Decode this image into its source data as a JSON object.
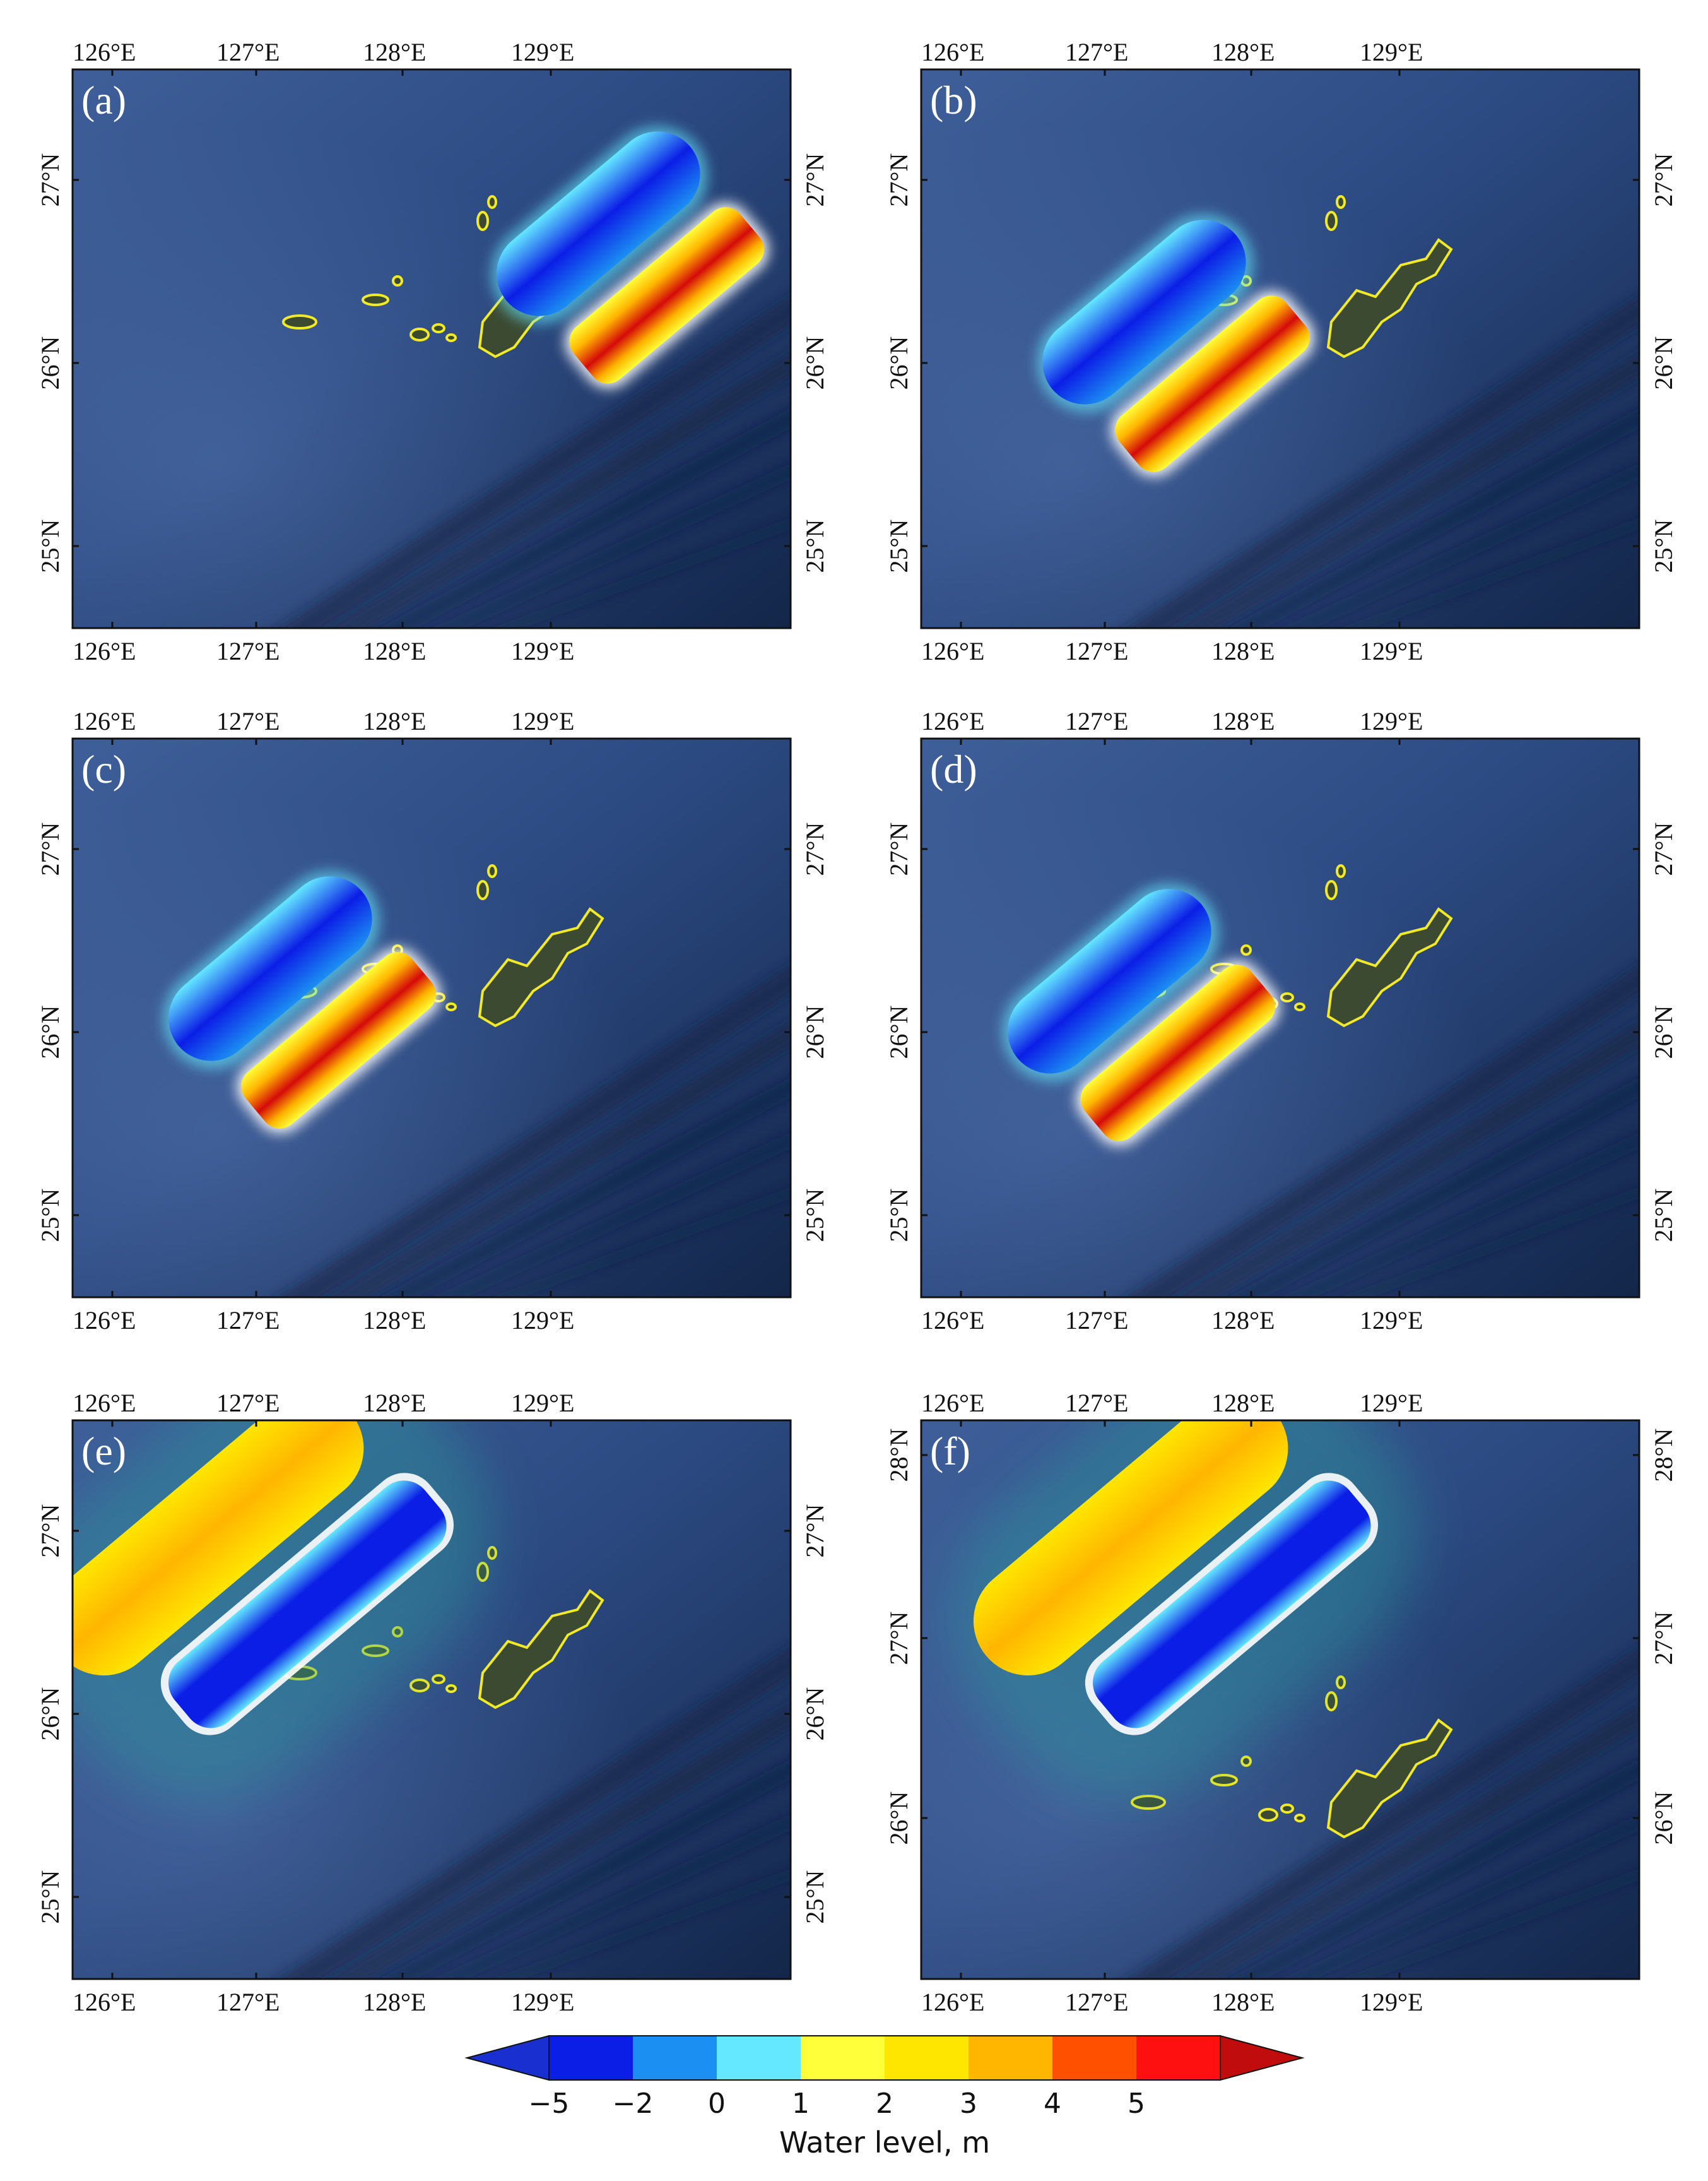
{
  "figure": {
    "panels": [
      {
        "label": "(a)",
        "lon_ticks_top": [
          "126°E",
          "127°E",
          "128°E",
          "129°E"
        ],
        "lon_ticks_bottom": [
          "126°E",
          "127°E",
          "128°E",
          "129°E"
        ],
        "lat_ticks_left": [
          "27°N",
          "26°N",
          "25°N"
        ],
        "lat_ticks_right": [
          "27°N",
          "26°N",
          "25°N"
        ]
      },
      {
        "label": "(b)",
        "lon_ticks_top": [
          "126°E",
          "127°E",
          "128°E",
          "129°E"
        ],
        "lon_ticks_bottom": [
          "126°E",
          "127°E",
          "128°E",
          "129°E"
        ],
        "lat_ticks_left": [
          "27°N",
          "26°N",
          "25°N"
        ],
        "lat_ticks_right": [
          "27°N",
          "26°N",
          "25°N"
        ]
      },
      {
        "label": "(c)",
        "lon_ticks_top": [
          "126°E",
          "127°E",
          "128°E",
          "129°E"
        ],
        "lon_ticks_bottom": [
          "126°E",
          "127°E",
          "128°E",
          "129°E"
        ],
        "lat_ticks_left": [
          "27°N",
          "26°N",
          "25°N"
        ],
        "lat_ticks_right": [
          "27°N",
          "26°N",
          "25°N"
        ]
      },
      {
        "label": "(d)",
        "lon_ticks_top": [
          "126°E",
          "127°E",
          "128°E",
          "129°E"
        ],
        "lon_ticks_bottom": [
          "126°E",
          "127°E",
          "128°E",
          "129°E"
        ],
        "lat_ticks_left": [
          "27°N",
          "26°N",
          "25°N"
        ],
        "lat_ticks_right": [
          "27°N",
          "26°N",
          "25°N"
        ]
      },
      {
        "label": "(e)",
        "lon_ticks_top": [
          "126°E",
          "127°E",
          "128°E",
          "129°E"
        ],
        "lon_ticks_bottom": [
          "126°E",
          "127°E",
          "128°E",
          "129°E"
        ],
        "lat_ticks_left": [
          "27°N",
          "26°N",
          "25°N"
        ],
        "lat_ticks_right": [
          "27°N",
          "26°N",
          "25°N"
        ]
      },
      {
        "label": "(f)",
        "lon_ticks_top": [
          "126°E",
          "127°E",
          "128°E",
          "129°E"
        ],
        "lon_ticks_bottom": [
          "126°E",
          "127°E",
          "128°E",
          "129°E"
        ],
        "lat_ticks_left": [
          "28°N",
          "27°N",
          "26°N"
        ],
        "lat_ticks_right": [
          "28°N",
          "27°N",
          "26°N"
        ]
      }
    ],
    "colorbar": {
      "title": "Water level, m",
      "ticks": [
        "−5",
        "−2",
        "0",
        "1",
        "2",
        "3",
        "4",
        "5"
      ],
      "colors": [
        "#0b1ee6",
        "#1b8ff2",
        "#64e8ff",
        "#ffff3a",
        "#ffe600",
        "#ffb600",
        "#ff5000",
        "#ff1010"
      ],
      "min_color": "#1a2fd0",
      "max_color": "#c00c0c"
    },
    "map_colors": {
      "sea_dark": "#0e1f3e",
      "sea_mid": "#2a4a80",
      "sea_light": "#4a6aa8",
      "coastline": "#f2ea24",
      "land": "#3c4a32"
    }
  }
}
